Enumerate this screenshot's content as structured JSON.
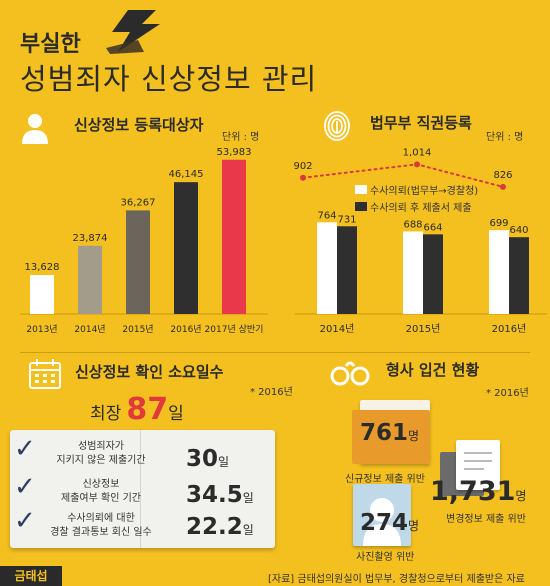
{
  "header": {
    "title_small": "부실한",
    "title_large": "성범죄자 신상정보 관리"
  },
  "registration": {
    "section_title": "신상정보 등록대상자",
    "unit": "단위 : 명"
  },
  "ministry": {
    "section_title": "법무부 직권등록",
    "unit": "단위 : 명",
    "legend_white": "수사의뢰(법무부→경찰청)",
    "legend_dark": "수사의뢰 후 제출서 제출"
  },
  "verification": {
    "section_title": "신상정보 확인 소요일수",
    "note": "* 2016년",
    "max_prefix": "최장",
    "max_value": "87",
    "max_unit": "일",
    "rows": [
      {
        "line1": "성범죄자가",
        "line2": "지키지 않은 제출기간",
        "value": "30",
        "unit": "일"
      },
      {
        "line1": "신상정보",
        "line2": "제출여부 확인 기간",
        "value": "34.5",
        "unit": "일"
      },
      {
        "line1": "수사의뢰에 대한",
        "line2": "경찰 결과통보 회신 일수",
        "value": "22.2",
        "unit": "일"
      }
    ]
  },
  "criminal": {
    "section_title": "형사 입건 현황",
    "note": "* 2016년",
    "items": [
      {
        "value": "761",
        "unit": "명",
        "label": "신규정보 제출 위반"
      },
      {
        "value": "1,731",
        "unit": "명",
        "label": "변경정보 제출 위반"
      },
      {
        "value": "274",
        "unit": "명",
        "label": "사진촬영 위반"
      }
    ]
  },
  "footer": {
    "logo": "금태섭",
    "source": "[자료] 금태섭의원실이 법무부, 경찰청으로부터 제출받은 자료"
  },
  "colors": {
    "background": "#f4c020",
    "accent_red": "#e8384a",
    "dark": "#2f2f2f",
    "line_red": "#d93a3a"
  },
  "chart_data": [
    {
      "type": "bar",
      "title": "신상정보 등록대상자",
      "unit": "단위 : 명",
      "categories": [
        "2013년",
        "2014년",
        "2015년",
        "2016년",
        "2017년 상반기"
      ],
      "values": [
        13628,
        23874,
        36267,
        46145,
        53983
      ],
      "value_labels": [
        "13,628",
        "23,874",
        "36,267",
        "46,145",
        "53,983"
      ],
      "bar_colors": [
        "#ffffff",
        "#a39c8b",
        "#6b655c",
        "#2f2f2f",
        "#e8384a"
      ],
      "ylim": [
        0,
        56000
      ],
      "grid": false
    },
    {
      "type": "bar",
      "title": "법무부 직권등록",
      "unit": "단위 : 명",
      "categories": [
        "2014년",
        "2015년",
        "2016년"
      ],
      "series": [
        {
          "name": "수사의뢰(법무부→경찰청)",
          "values": [
            764,
            688,
            699
          ],
          "labels": [
            "764",
            "688",
            "699"
          ],
          "color": "#ffffff"
        },
        {
          "name": "수사의뢰 후 제출서 제출",
          "values": [
            731,
            664,
            640
          ],
          "labels": [
            "731",
            "664",
            "640"
          ],
          "color": "#2f2f2f"
        }
      ],
      "line": {
        "values": [
          902,
          1014,
          826
        ],
        "labels": [
          "902",
          "1,014",
          "826"
        ],
        "color": "#d93a3a",
        "style": "dotted"
      },
      "ylim": [
        0,
        1100
      ],
      "grid": false
    }
  ]
}
